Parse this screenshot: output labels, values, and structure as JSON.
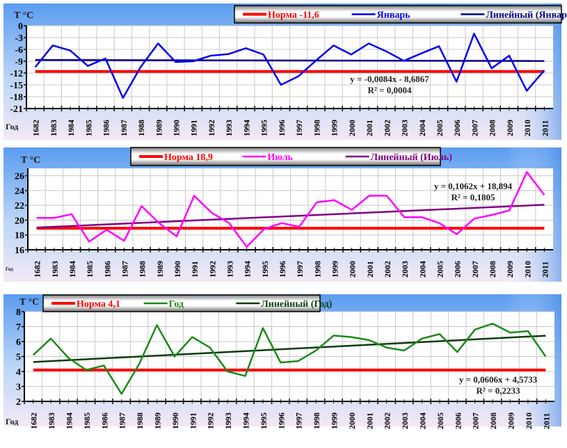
{
  "chart_data": [
    {
      "type": "line",
      "title": "",
      "ylabel": "T °C",
      "xlabel": "Год",
      "ylim": [
        -21,
        0
      ],
      "yticks": [
        0,
        -3,
        -6,
        -9,
        -12,
        -15,
        -18,
        -21
      ],
      "grid": true,
      "legend_position": "top-right",
      "categories": [
        "1682",
        "1983",
        "1984",
        "1985",
        "1986",
        "1987",
        "1988",
        "1989",
        "1990",
        "1991",
        "1992",
        "1993",
        "1994",
        "1995",
        "1996",
        "1997",
        "1998",
        "1999",
        "2000",
        "2001",
        "2002",
        "2003",
        "2004",
        "2005",
        "2006",
        "2007",
        "2008",
        "2009",
        "2010",
        "2011"
      ],
      "norm": {
        "name": "Норма -11,6",
        "value": -11.6,
        "color": "#ff0000"
      },
      "series": [
        {
          "name": "Январь",
          "color": "#0000ee",
          "values": [
            -10.5,
            -5.0,
            -6.3,
            -10.2,
            -8.3,
            -18.3,
            -10.5,
            -4.5,
            -9.2,
            -9.0,
            -7.6,
            -7.2,
            -5.7,
            -7.3,
            -15.0,
            -12.8,
            -8.8,
            -5.0,
            -7.3,
            -4.5,
            -6.5,
            -8.9,
            -7.0,
            -5.2,
            -14.2,
            -2.0,
            -10.8,
            -7.6,
            -16.5,
            -11.3
          ]
        }
      ],
      "trend": {
        "name": "Линейный (Январь)",
        "color": "#00008b",
        "slope": -0.0084,
        "intercept": -8.6867,
        "equation": "y = -0,0084x - 8,6867",
        "r2": "R² = 0,0004"
      }
    },
    {
      "type": "line",
      "title": "",
      "ylabel": "T °C",
      "xlabel": "Год",
      "ylim": [
        16,
        27
      ],
      "yticks": [
        16,
        18,
        20,
        22,
        24,
        26
      ],
      "grid": true,
      "legend_position": "top-center",
      "categories": [
        "1682",
        "1983",
        "1984",
        "1985",
        "1986",
        "1987",
        "1988",
        "1989",
        "1990",
        "1991",
        "1992",
        "1993",
        "1994",
        "1995",
        "1996",
        "1997",
        "1998",
        "1999",
        "2000",
        "2001",
        "2002",
        "2003",
        "2004",
        "2005",
        "2006",
        "2007",
        "2008",
        "2009",
        "2010",
        "2011"
      ],
      "norm": {
        "name": "Норма 18,9",
        "value": 18.9,
        "color": "#ff0000"
      },
      "series": [
        {
          "name": "Июль",
          "color": "#ff00ff",
          "values": [
            20.3,
            20.3,
            20.8,
            17.1,
            18.7,
            17.2,
            21.9,
            19.6,
            17.8,
            23.3,
            21.0,
            19.6,
            16.4,
            18.8,
            19.6,
            19.1,
            22.4,
            22.7,
            21.4,
            23.3,
            23.3,
            20.4,
            20.4,
            19.6,
            18.1,
            20.2,
            20.7,
            21.3,
            26.5,
            23.4
          ]
        }
      ],
      "trend": {
        "name": "Линейный (Июль)",
        "color": "#800080",
        "slope": 0.1062,
        "intercept": 18.894,
        "equation": "y = 0,1062x + 18,894",
        "r2": "R² = 0,1805"
      }
    },
    {
      "type": "line",
      "title": "",
      "ylabel": "T °C",
      "xlabel": "Год",
      "ylim": [
        2,
        8
      ],
      "yticks": [
        2,
        3,
        4,
        5,
        6,
        7,
        8
      ],
      "grid": true,
      "legend_position": "top-left",
      "categories": [
        "1682",
        "1983",
        "1984",
        "1985",
        "1986",
        "1987",
        "1988",
        "1989",
        "1990",
        "1991",
        "1992",
        "1993",
        "1994",
        "1995",
        "1996",
        "1997",
        "1998",
        "1999",
        "2000",
        "2001",
        "2002",
        "2003",
        "2004",
        "2005",
        "2006",
        "2007",
        "2008",
        "2009",
        "2010",
        "2011"
      ],
      "norm": {
        "name": "Норма 4,1",
        "value": 4.1,
        "color": "#ff0000"
      },
      "series": [
        {
          "name": "Год",
          "color": "#1a8a1a",
          "values": [
            5.1,
            6.2,
            4.9,
            4.1,
            4.4,
            2.5,
            4.5,
            7.1,
            5.0,
            6.3,
            5.6,
            4.0,
            3.7,
            6.9,
            4.6,
            4.7,
            5.4,
            6.4,
            6.3,
            6.1,
            5.6,
            5.4,
            6.2,
            6.5,
            5.3,
            6.8,
            7.2,
            6.6,
            6.7,
            5.0
          ]
        }
      ],
      "trend": {
        "name": "Линейный (Год)",
        "color": "#0b3d0b",
        "slope": 0.0606,
        "intercept": 4.5733,
        "equation": "y = 0,0606x + 4,5733",
        "r2": "R² = 0,2233"
      }
    }
  ]
}
